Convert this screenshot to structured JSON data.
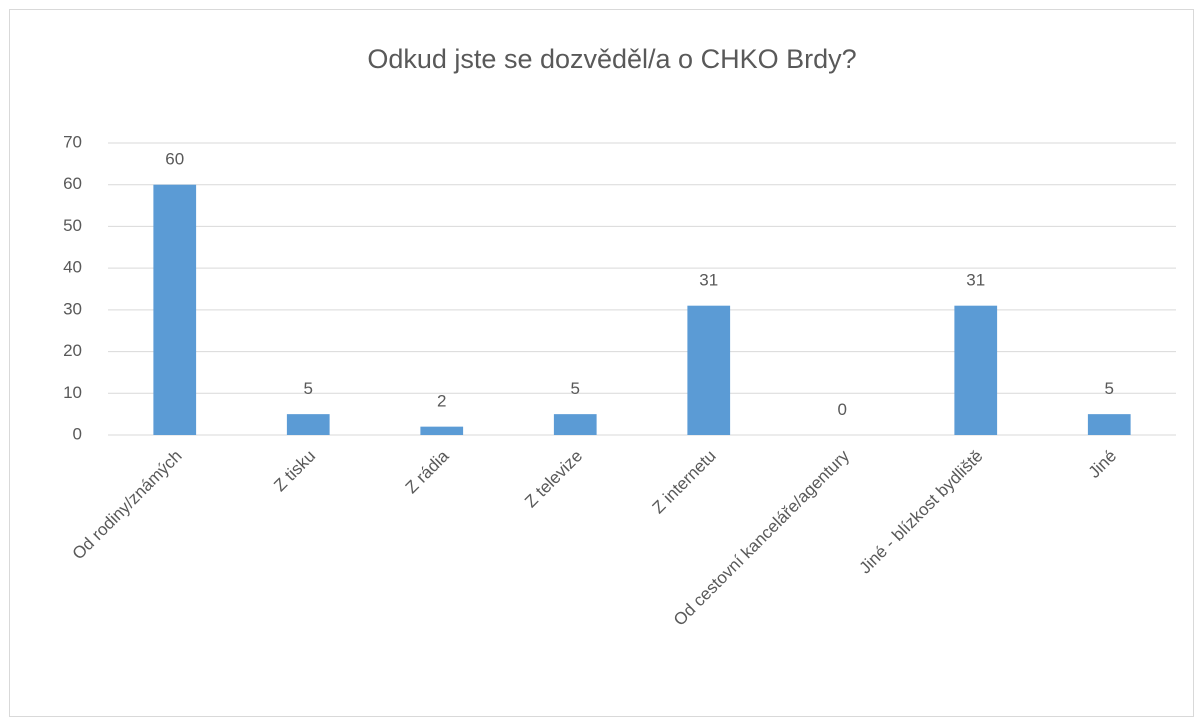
{
  "chart_data": {
    "type": "bar",
    "title": "Odkud jste se dozvěděl/a o CHKO Brdy?",
    "categories": [
      "Od rodiny/známých",
      "Z tisku",
      "Z rádia",
      "Z televize",
      "Z internetu",
      "Od cestovní kanceláře/agentury",
      "Jiné - blízkost bydliště",
      "Jiné"
    ],
    "values": [
      60,
      5,
      2,
      5,
      31,
      0,
      31,
      5
    ],
    "color": "#5b9bd5",
    "ylim": [
      0,
      70
    ],
    "yticks": [
      0,
      10,
      20,
      30,
      40,
      50,
      60,
      70
    ],
    "grid": true
  }
}
